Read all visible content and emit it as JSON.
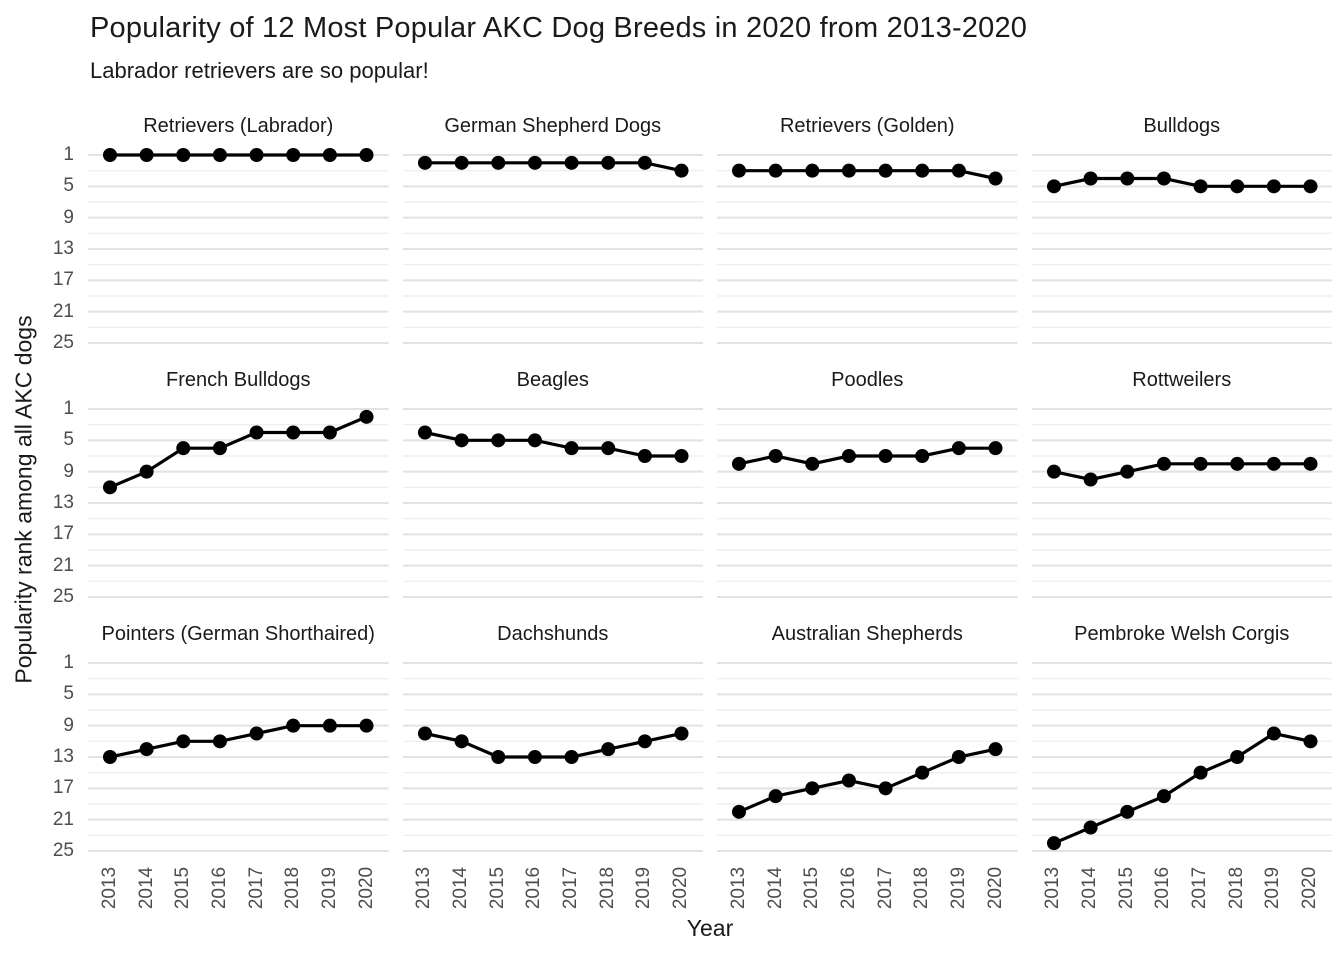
{
  "chart_data": {
    "type": "line",
    "title": "Popularity of 12 Most Popular AKC Dog Breeds in 2020 from 2013-2020",
    "subtitle": "Labrador retrievers are so popular!",
    "xlabel": "Year",
    "ylabel": "Popularity rank among all AKC dogs",
    "x": [
      2013,
      2014,
      2015,
      2016,
      2017,
      2018,
      2019,
      2020
    ],
    "x_tick_labels": [
      "2013",
      "2014",
      "2015",
      "2016",
      "2017",
      "2018",
      "2019",
      "2020"
    ],
    "y_ticks": [
      1,
      5,
      9,
      13,
      17,
      21,
      25
    ],
    "y_minor_ticks": [
      3,
      7,
      11,
      15,
      19,
      23
    ],
    "ylim": [
      1,
      25
    ],
    "y_axis_reversed": true,
    "grid": "horizontal-only",
    "legend": "none",
    "facet_layout": {
      "rows": 3,
      "cols": 4
    },
    "facets": [
      {
        "title": "Retrievers (Labrador)",
        "values": [
          1,
          1,
          1,
          1,
          1,
          1,
          1,
          1
        ]
      },
      {
        "title": "German Shepherd Dogs",
        "values": [
          2,
          2,
          2,
          2,
          2,
          2,
          2,
          3
        ]
      },
      {
        "title": "Retrievers (Golden)",
        "values": [
          3,
          3,
          3,
          3,
          3,
          3,
          3,
          4
        ]
      },
      {
        "title": "Bulldogs",
        "values": [
          5,
          4,
          4,
          4,
          5,
          5,
          5,
          5
        ]
      },
      {
        "title": "French Bulldogs",
        "values": [
          11,
          9,
          6,
          6,
          4,
          4,
          4,
          2
        ]
      },
      {
        "title": "Beagles",
        "values": [
          4,
          5,
          5,
          5,
          6,
          6,
          7,
          7
        ]
      },
      {
        "title": "Poodles",
        "values": [
          8,
          7,
          8,
          7,
          7,
          7,
          6,
          6
        ]
      },
      {
        "title": "Rottweilers",
        "values": [
          9,
          10,
          9,
          8,
          8,
          8,
          8,
          8
        ]
      },
      {
        "title": "Pointers (German Shorthaired)",
        "values": [
          13,
          12,
          11,
          11,
          10,
          9,
          9,
          9
        ]
      },
      {
        "title": "Dachshunds",
        "values": [
          10,
          11,
          13,
          13,
          13,
          12,
          11,
          10
        ]
      },
      {
        "title": "Australian Shepherds",
        "values": [
          20,
          18,
          17,
          16,
          17,
          15,
          13,
          12
        ]
      },
      {
        "title": "Pembroke Welsh Corgis",
        "values": [
          24,
          22,
          20,
          18,
          15,
          13,
          10,
          11
        ]
      }
    ],
    "style": {
      "line_color": "#000000",
      "point_color": "#000000",
      "grid_major_color": "#e2e2e2",
      "grid_minor_color": "#ececec",
      "tick_label_color": "#4d4d4d",
      "text_color": "#1a1a1a",
      "background": "#ffffff"
    }
  }
}
